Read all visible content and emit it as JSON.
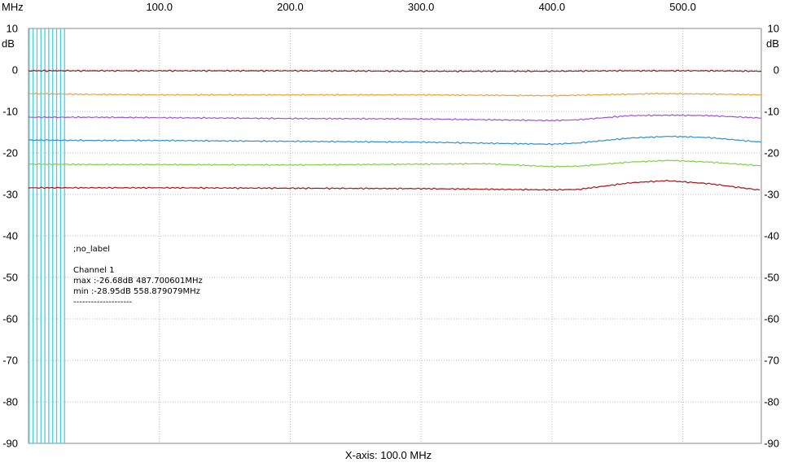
{
  "chart_data": {
    "type": "line",
    "x_unit_label": "MHz",
    "y_unit_label": "dB",
    "xlabel": "X-axis: 100.0 MHz",
    "x_ticks": [
      100,
      200,
      300,
      400,
      500
    ],
    "x_tick_labels": [
      "100.0",
      "200.0",
      "300.0",
      "400.0",
      "500.0"
    ],
    "y_ticks": [
      10,
      0,
      -10,
      -20,
      -30,
      -40,
      -50,
      -60,
      -70,
      -80,
      -90
    ],
    "y_tick_labels": [
      "10",
      "0",
      "-10",
      "-20",
      "-30",
      "-40",
      "-50",
      "-60",
      "-70",
      "-80",
      "-90"
    ],
    "xlim": [
      0,
      560
    ],
    "ylim": [
      -90,
      10
    ],
    "grid": true,
    "marker_lines_mhz": [
      0.5,
      3.5,
      6.5,
      9.5,
      12.5,
      15.5,
      18.5,
      21.5,
      24.5,
      27.5
    ],
    "marker_color": "#3fd3de",
    "series": [
      {
        "color": "#8b1a1a",
        "x": [
          0,
          50,
          100,
          200,
          300,
          400,
          450,
          480,
          520,
          560
        ],
        "y": [
          -0.2,
          -0.2,
          -0.2,
          -0.2,
          -0.3,
          -0.3,
          -0.2,
          -0.2,
          -0.2,
          -0.3
        ]
      },
      {
        "color": "#f0a030",
        "x": [
          0,
          50,
          100,
          200,
          300,
          400,
          450,
          480,
          520,
          560
        ],
        "y": [
          -5.7,
          -5.9,
          -6.0,
          -6.0,
          -6.0,
          -6.2,
          -5.9,
          -5.7,
          -5.8,
          -6.0
        ]
      },
      {
        "color": "#a050e0",
        "x": [
          0,
          50,
          100,
          200,
          300,
          400,
          420,
          460,
          490,
          520,
          560
        ],
        "y": [
          -11.4,
          -11.4,
          -11.5,
          -11.7,
          -11.8,
          -12.2,
          -12.0,
          -11.0,
          -10.9,
          -11.0,
          -11.6
        ]
      },
      {
        "color": "#2a90d8",
        "x": [
          0,
          50,
          100,
          200,
          300,
          400,
          420,
          460,
          490,
          520,
          560
        ],
        "y": [
          -16.9,
          -17.0,
          -17.0,
          -17.2,
          -17.4,
          -17.9,
          -17.6,
          -16.4,
          -16.0,
          -16.3,
          -17.4
        ]
      },
      {
        "color": "#80d040",
        "x": [
          0,
          50,
          100,
          200,
          300,
          350,
          400,
          420,
          460,
          490,
          520,
          560
        ],
        "y": [
          -22.7,
          -22.8,
          -22.8,
          -22.9,
          -22.7,
          -22.6,
          -23.3,
          -23.2,
          -22.2,
          -21.8,
          -22.2,
          -23.1
        ]
      },
      {
        "color": "#b01010",
        "x": [
          0,
          50,
          100,
          200,
          300,
          400,
          420,
          460,
          487.7,
          520,
          558.9
        ],
        "y": [
          -28.4,
          -28.4,
          -28.4,
          -28.5,
          -28.6,
          -28.9,
          -28.8,
          -27.2,
          -26.68,
          -27.4,
          -28.95
        ]
      }
    ],
    "annotation": {
      "label": ";no_label",
      "channel": "Channel 1",
      "max": "max :-26.68dB 487.700601MHz",
      "min": "min :-28.95dB 558.879079MHz",
      "separator": "--------------------"
    }
  }
}
